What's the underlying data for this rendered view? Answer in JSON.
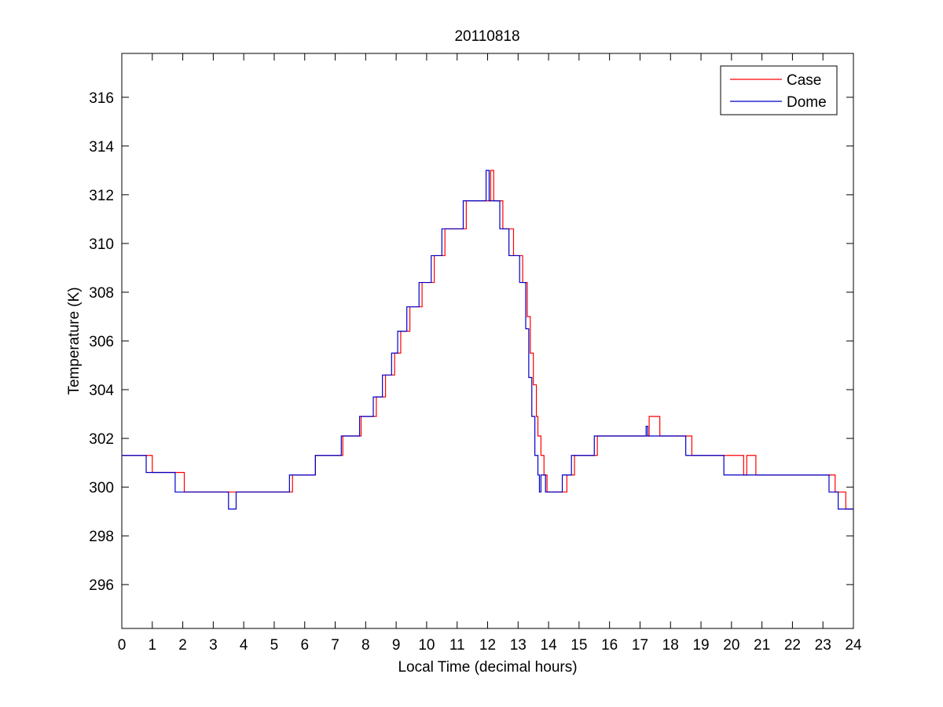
{
  "chart_data": {
    "type": "line",
    "title": "20110818",
    "xlabel": "Local Time (decimal hours)",
    "ylabel": "Temperature (K)",
    "xlim": [
      0,
      24
    ],
    "ylim": [
      294.2,
      317.8
    ],
    "x_ticks": [
      0,
      1,
      2,
      3,
      4,
      5,
      6,
      7,
      8,
      9,
      10,
      11,
      12,
      13,
      14,
      15,
      16,
      17,
      18,
      19,
      20,
      21,
      22,
      23,
      24
    ],
    "y_ticks": [
      296,
      298,
      300,
      302,
      304,
      306,
      308,
      310,
      312,
      314,
      316
    ],
    "grid": false,
    "legend_position": "top-right",
    "series": [
      {
        "name": "Case",
        "color": "#ff0000",
        "step": true,
        "points": [
          [
            0,
            301.3
          ],
          [
            1.0,
            300.6
          ],
          [
            2.05,
            299.8
          ],
          [
            3.75,
            299.8
          ],
          [
            5.6,
            300.5
          ],
          [
            6.35,
            301.3
          ],
          [
            7.25,
            302.1
          ],
          [
            7.85,
            302.9
          ],
          [
            8.35,
            303.7
          ],
          [
            8.65,
            304.6
          ],
          [
            8.95,
            305.5
          ],
          [
            9.15,
            306.4
          ],
          [
            9.45,
            307.4
          ],
          [
            9.85,
            308.4
          ],
          [
            10.25,
            309.5
          ],
          [
            10.6,
            310.6
          ],
          [
            11.3,
            311.75
          ],
          [
            12.1,
            313.0
          ],
          [
            12.2,
            311.75
          ],
          [
            12.5,
            310.6
          ],
          [
            12.85,
            309.5
          ],
          [
            13.15,
            308.4
          ],
          [
            13.3,
            307.0
          ],
          [
            13.4,
            305.5
          ],
          [
            13.5,
            304.2
          ],
          [
            13.6,
            302.9
          ],
          [
            13.65,
            302.1
          ],
          [
            13.75,
            301.3
          ],
          [
            13.85,
            300.5
          ],
          [
            13.95,
            299.8
          ],
          [
            14.6,
            300.5
          ],
          [
            14.85,
            301.3
          ],
          [
            15.6,
            302.1
          ],
          [
            17.3,
            302.9
          ],
          [
            17.65,
            302.1
          ],
          [
            18.7,
            301.3
          ],
          [
            20.4,
            300.5
          ],
          [
            20.5,
            301.3
          ],
          [
            20.8,
            300.5
          ],
          [
            23.4,
            299.8
          ],
          [
            23.75,
            299.1
          ],
          [
            24,
            299.1
          ]
        ]
      },
      {
        "name": "Dome",
        "color": "#0000c8",
        "step": true,
        "points": [
          [
            0,
            301.3
          ],
          [
            0.8,
            300.6
          ],
          [
            1.75,
            299.8
          ],
          [
            3.5,
            299.1
          ],
          [
            3.75,
            299.8
          ],
          [
            5.5,
            300.5
          ],
          [
            6.35,
            301.3
          ],
          [
            7.2,
            302.1
          ],
          [
            7.8,
            302.9
          ],
          [
            8.25,
            303.7
          ],
          [
            8.55,
            304.6
          ],
          [
            8.85,
            305.5
          ],
          [
            9.05,
            306.4
          ],
          [
            9.35,
            307.4
          ],
          [
            9.75,
            308.4
          ],
          [
            10.15,
            309.5
          ],
          [
            10.5,
            310.6
          ],
          [
            11.2,
            311.75
          ],
          [
            11.95,
            313.0
          ],
          [
            12.05,
            311.75
          ],
          [
            12.4,
            310.6
          ],
          [
            12.7,
            309.5
          ],
          [
            13.05,
            308.4
          ],
          [
            13.25,
            306.5
          ],
          [
            13.35,
            304.5
          ],
          [
            13.45,
            302.9
          ],
          [
            13.55,
            301.3
          ],
          [
            13.65,
            300.5
          ],
          [
            13.7,
            299.8
          ],
          [
            13.75,
            300.5
          ],
          [
            13.9,
            299.8
          ],
          [
            14.45,
            300.5
          ],
          [
            14.75,
            301.3
          ],
          [
            15.5,
            302.1
          ],
          [
            17.2,
            302.5
          ],
          [
            17.25,
            302.1
          ],
          [
            18.5,
            301.3
          ],
          [
            19.75,
            300.5
          ],
          [
            23.2,
            299.8
          ],
          [
            23.5,
            299.1
          ],
          [
            24,
            299.1
          ]
        ]
      }
    ]
  }
}
